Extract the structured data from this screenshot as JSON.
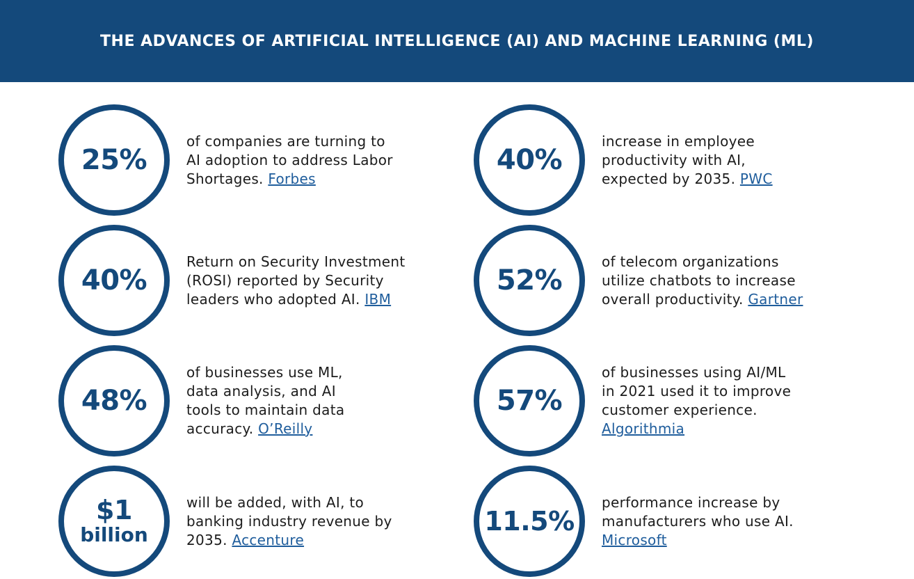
{
  "header": {
    "title": "THE ADVANCES OF ARTIFICIAL INTELLIGENCE (AI) AND MACHINE LEARNING (ML)"
  },
  "colors": {
    "brand": "#14497b",
    "link": "#1f5d9c",
    "text": "#1c1c1c"
  },
  "stats": [
    {
      "value": "25%",
      "text": "of companies are turning to AI adoption to address Labor Shortages.",
      "source": "Forbes"
    },
    {
      "value": "40%",
      "text": "Return on Security Investment (ROSI) reported by Security leaders who adopted AI.",
      "source": "IBM"
    },
    {
      "value": "48%",
      "text": "of businesses use ML, data analysis, and AI tools to maintain data accuracy.",
      "source": "O’Reilly"
    },
    {
      "value": "$1",
      "unit": "billion",
      "text": "will be added, with AI, to banking industry revenue by 2035.",
      "source": "Accenture"
    },
    {
      "value": "40%",
      "text": "increase in employee productivity with AI, expected by 2035.",
      "source": "PWC"
    },
    {
      "value": "52%",
      "text": "of telecom organizations utilize chatbots to increase overall productivity.",
      "source": "Gartner"
    },
    {
      "value": "57%",
      "text": "of businesses using AI/ML in 2021 used it to improve customer experience.",
      "source": "Algorithmia"
    },
    {
      "value": "11.5%",
      "text": "performance increase by manufacturers who use AI.",
      "source": "Microsoft"
    }
  ]
}
